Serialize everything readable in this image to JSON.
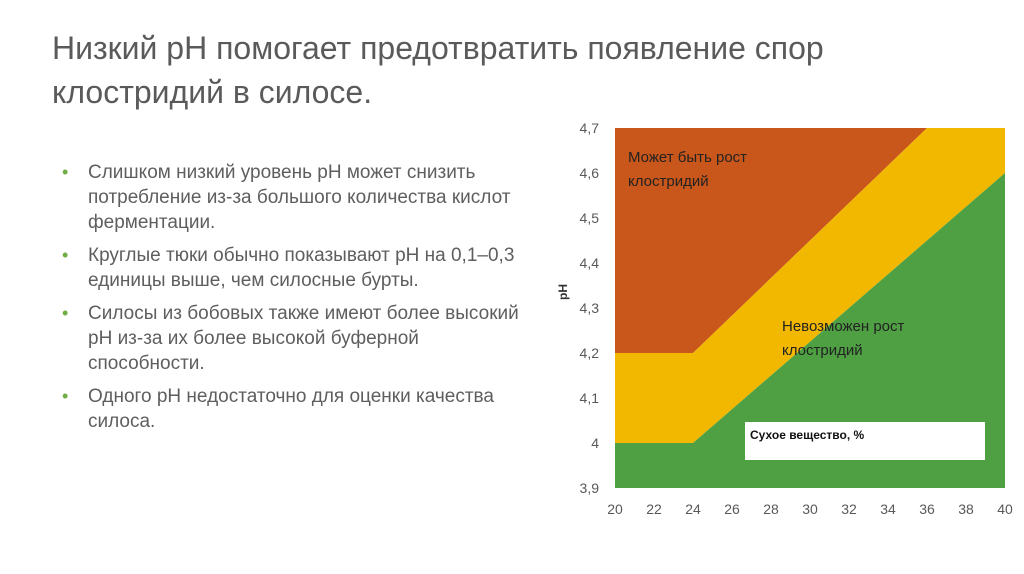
{
  "slide": {
    "title_line1": "Низкий pH помогает предотвратить появление спор",
    "title_line2": "клостридий в силосе.",
    "bullets": [
      "Слишком низкий уровень pH может снизить потребление из-за большого количества кислот ферментации.",
      "Круглые тюки обычно показывают pH на 0,1–0,3 единицы выше, чем силосные бурты.",
      "Силосы из бобовых также имеют более высокий pH из-за их более высокой буферной способности.",
      "Одного pH недостаточно для оценки качества силоса."
    ],
    "bullet_color": "#70ad47"
  },
  "chart_data": {
    "type": "area",
    "xlabel": "Сухое вещество, %",
    "ylabel": "pH",
    "xlim": [
      20,
      40
    ],
    "ylim": [
      3.9,
      4.7
    ],
    "x_ticks": [
      "20",
      "22",
      "24",
      "26",
      "28",
      "30",
      "32",
      "34",
      "36",
      "38",
      "40"
    ],
    "y_ticks": [
      "3,9",
      "4",
      "4,1",
      "4,2",
      "4,3",
      "4,4",
      "4,5",
      "4,6",
      "4,7"
    ],
    "upper_boundary": {
      "x": [
        20,
        24,
        36,
        40
      ],
      "y": [
        4.2,
        4.2,
        4.7,
        4.7
      ]
    },
    "lower_boundary": {
      "x": [
        20,
        24,
        40
      ],
      "y": [
        4.0,
        4.0,
        4.6
      ]
    },
    "regions": [
      {
        "name": "Может быть рост клостридий",
        "label_line1": "Может быть рост",
        "label_line2": "клостридий",
        "color": "#c9561a"
      },
      {
        "name": "transition",
        "color": "#f2b800"
      },
      {
        "name": "Невозможен рост клостридий",
        "label_line1": "Невозможен рост",
        "label_line2": "клостридий",
        "color": "#4ea043"
      }
    ],
    "grid": false
  }
}
